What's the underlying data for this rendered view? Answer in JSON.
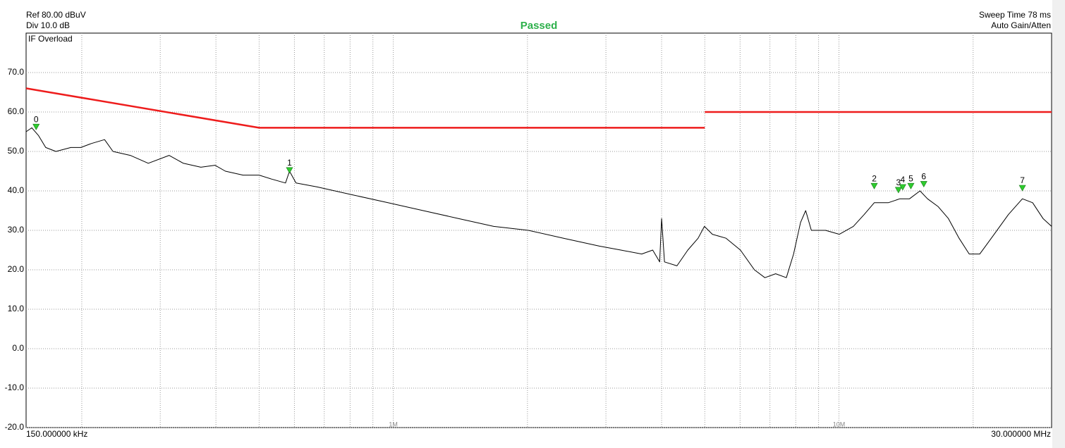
{
  "chart_data": {
    "type": "line",
    "ref_level": "Ref 80.00 dBuV",
    "division": "Div 10.0 dB",
    "status": "Passed",
    "overload": "IF Overload",
    "sweep_time": "Sweep Time 78 ms",
    "gain_mode": "Auto Gain/Atten",
    "start_label": "150.000000 kHz",
    "stop_label": "30.000000 MHz",
    "log_x": true,
    "grid": true,
    "xlim": [
      0.15,
      30
    ],
    "ylim": [
      -20,
      80
    ],
    "xticks": [
      {
        "value": 1,
        "label": "1M"
      },
      {
        "value": 10,
        "label": "10M"
      }
    ],
    "minor_xgrid": [
      0.2,
      0.3,
      0.4,
      0.5,
      0.6,
      0.7,
      0.8,
      0.9,
      2,
      3,
      4,
      5,
      6,
      7,
      8,
      9,
      20
    ],
    "yticks": [
      {
        "value": 70,
        "label": "70.0"
      },
      {
        "value": 60,
        "label": "60.0"
      },
      {
        "value": 50,
        "label": "50.0"
      },
      {
        "value": 40,
        "label": "40.0"
      },
      {
        "value": 30,
        "label": "30.0"
      },
      {
        "value": 20,
        "label": "20.0"
      },
      {
        "value": 10,
        "label": "10.0"
      },
      {
        "value": 0,
        "label": "0.0"
      },
      {
        "value": -10,
        "label": "-10.0"
      },
      {
        "value": -20,
        "label": "-20.0"
      }
    ],
    "series": [
      {
        "color": "#000000",
        "x": [
          0.15,
          0.1545,
          0.16,
          0.166,
          0.175,
          0.189,
          0.199,
          0.21,
          0.225,
          0.235,
          0.257,
          0.282,
          0.314,
          0.338,
          0.37,
          0.398,
          0.42,
          0.46,
          0.5,
          0.533,
          0.573,
          0.585,
          0.605,
          0.675,
          0.81,
          0.973,
          1.167,
          1.4,
          1.68,
          2.01,
          2.41,
          2.9,
          3.24,
          3.61,
          3.82,
          3.96,
          4.0,
          4.06,
          4.33,
          4.58,
          4.83,
          4.99,
          5.2,
          5.58,
          6.01,
          6.46,
          6.82,
          7.21,
          7.62,
          7.91,
          8.2,
          8.42,
          8.67,
          9.33,
          10.02,
          10.77,
          11.39,
          12.0,
          12.9,
          13.7,
          14.4,
          15.2,
          15.8,
          16.7,
          17.6,
          18.6,
          19.6,
          20.7,
          22.3,
          24.0,
          25.8,
          27.2,
          28.7,
          30
        ],
        "values": [
          55,
          56,
          54,
          51,
          50,
          51,
          51,
          52,
          53,
          50,
          49,
          47,
          49,
          47,
          46,
          46.5,
          45,
          44,
          44,
          43,
          42,
          45,
          42,
          41,
          39,
          37,
          35,
          33,
          31,
          30,
          28,
          26,
          25,
          24,
          25,
          22,
          33,
          22,
          21,
          25,
          28,
          31,
          29,
          28,
          25,
          20,
          18,
          19,
          18,
          24,
          32,
          35,
          30,
          30,
          29,
          31,
          34,
          37,
          37,
          38,
          38,
          40,
          38,
          36,
          33,
          28,
          24,
          24,
          29,
          34,
          38,
          37,
          33,
          31
        ]
      },
      {
        "color": "#ee1c1c",
        "x": [
          0.15,
          0.5,
          5
        ],
        "values": [
          66,
          56,
          56
        ]
      },
      {
        "color": "#ee1c1c",
        "x": [
          5,
          30
        ],
        "values": [
          60,
          60
        ]
      }
    ],
    "marker_color": "#2ecc2e",
    "markers": [
      {
        "label": "0",
        "x": 0.158,
        "value": 55.5
      },
      {
        "label": "1",
        "x": 0.585,
        "value": 44.5
      },
      {
        "label": "2",
        "x": 12.0,
        "value": 40.5
      },
      {
        "label": "3",
        "x": 13.6,
        "value": 39.5
      },
      {
        "label": "4",
        "x": 13.9,
        "value": 40.2
      },
      {
        "label": "5",
        "x": 14.5,
        "value": 40.5
      },
      {
        "label": "6",
        "x": 15.5,
        "value": 41
      },
      {
        "label": "7",
        "x": 25.8,
        "value": 40
      }
    ]
  }
}
